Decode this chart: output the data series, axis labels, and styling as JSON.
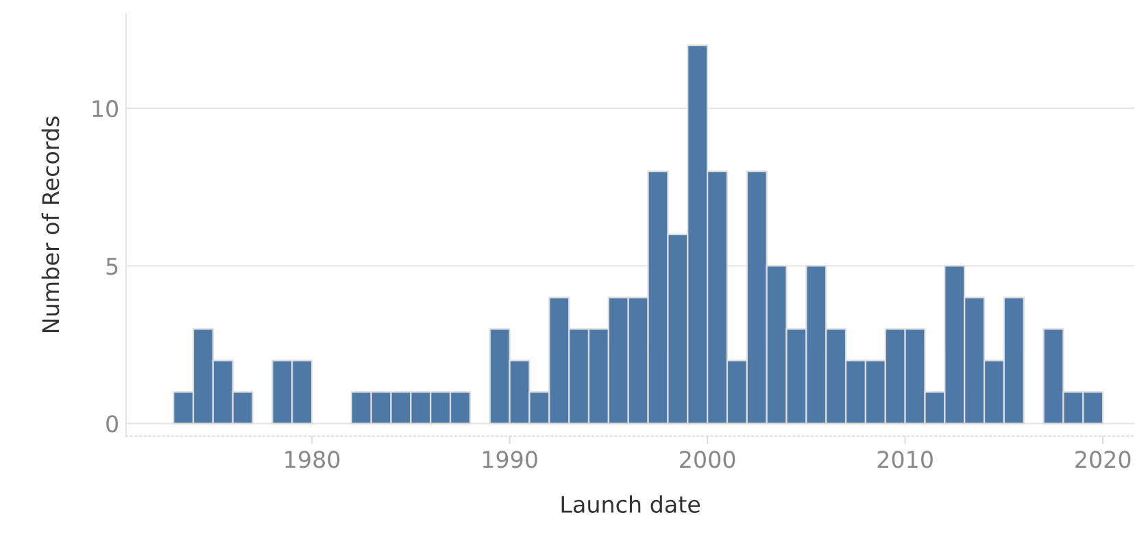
{
  "chart_data": {
    "type": "histogram",
    "xlabel": "Launch date",
    "ylabel": "Number of Records",
    "bins": [
      1973,
      1974,
      1975,
      1976,
      1977,
      1978,
      1979,
      1980,
      1981,
      1982,
      1983,
      1984,
      1985,
      1986,
      1987,
      1988,
      1989,
      1990,
      1991,
      1992,
      1993,
      1994,
      1995,
      1996,
      1997,
      1998,
      1999,
      2000,
      2001,
      2002,
      2003,
      2004,
      2005,
      2006,
      2007,
      2008,
      2009,
      2010,
      2011,
      2012,
      2013,
      2014,
      2015,
      2016,
      2017,
      2018,
      2019,
      2020
    ],
    "values": [
      1,
      3,
      2,
      1,
      0,
      2,
      2,
      0,
      0,
      1,
      1,
      1,
      1,
      1,
      1,
      0,
      3,
      2,
      1,
      4,
      3,
      3,
      4,
      4,
      8,
      6,
      12,
      8,
      2,
      8,
      5,
      3,
      5,
      3,
      2,
      2,
      3,
      3,
      1,
      5,
      4,
      2,
      4,
      0,
      3,
      1,
      1
    ],
    "color": "#4e79a7",
    "xlim": [
      1970.6,
      2021.6
    ],
    "xticks": [
      1980,
      1990,
      2000,
      2010,
      2020
    ],
    "ylim": [
      -0.4,
      13
    ],
    "yticks": [
      0,
      5,
      10
    ],
    "grid": "y"
  }
}
